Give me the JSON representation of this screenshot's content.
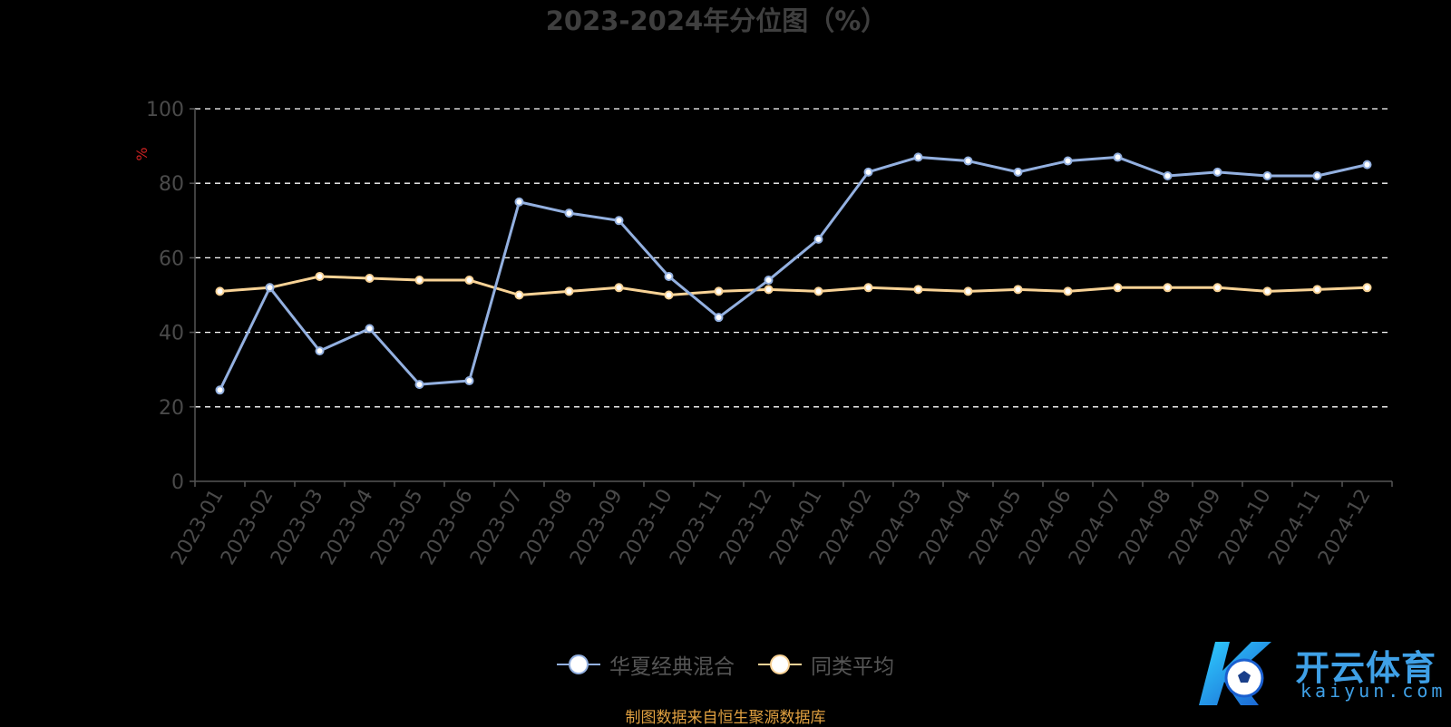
{
  "chart_data": {
    "type": "line",
    "title": "2023-2024年分位图（%）",
    "ylabel": "%",
    "xlabel": "",
    "ylim": [
      0,
      100
    ],
    "yticks": [
      0,
      20,
      40,
      60,
      80,
      100
    ],
    "grid": true,
    "legend_position": "bottom",
    "categories": [
      "2023-01",
      "2023-02",
      "2023-03",
      "2023-04",
      "2023-05",
      "2023-06",
      "2023-07",
      "2023-08",
      "2023-09",
      "2023-10",
      "2023-11",
      "2023-12",
      "2024-01",
      "2024-02",
      "2024-03",
      "2024-04",
      "2024-05",
      "2024-06",
      "2024-07",
      "2024-08",
      "2024-09",
      "2024-10",
      "2024-11",
      "2024-12"
    ],
    "series": [
      {
        "name": "华夏经典混合",
        "color": "#93b0e0",
        "values": [
          24.5,
          52,
          35,
          41,
          26,
          27,
          75,
          72,
          70,
          55,
          44,
          54,
          65,
          83,
          87,
          86,
          83,
          86,
          87,
          82,
          83,
          82,
          82,
          85
        ]
      },
      {
        "name": "同类平均",
        "color": "#f9d396",
        "values": [
          51,
          52,
          55,
          54.5,
          54,
          54,
          50,
          51,
          52,
          50,
          51,
          51.5,
          51,
          52,
          51.5,
          51,
          51.5,
          51,
          52,
          52,
          52,
          51,
          51.5,
          52
        ]
      }
    ]
  },
  "source_text": "制图数据来自恒生聚源数据库",
  "watermark": {
    "name": "开云体育",
    "domain": "kaiyun.com"
  }
}
